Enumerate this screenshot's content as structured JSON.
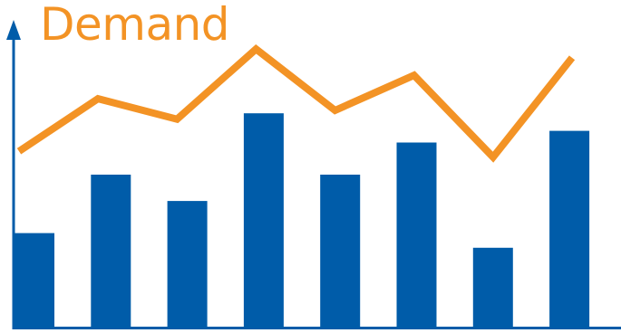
{
  "chart_data": {
    "type": "bar",
    "title": "Demand",
    "xlabel": "",
    "ylabel": "",
    "categories": [
      "",
      "",
      "",
      "",
      "",
      "",
      "",
      ""
    ],
    "ylim": [
      0,
      100
    ],
    "grid": false,
    "legend": "none",
    "series": [
      {
        "type": "bar",
        "values": [
          32,
          52,
          43,
          73,
          52,
          63,
          27,
          67
        ]
      },
      {
        "type": "line",
        "values": [
          60,
          78,
          71,
          95,
          74,
          86,
          58,
          92
        ]
      }
    ]
  },
  "colors": {
    "bar": "#005ca9",
    "line": "#f39325",
    "axis": "#005ca9",
    "title": "#f39325"
  }
}
